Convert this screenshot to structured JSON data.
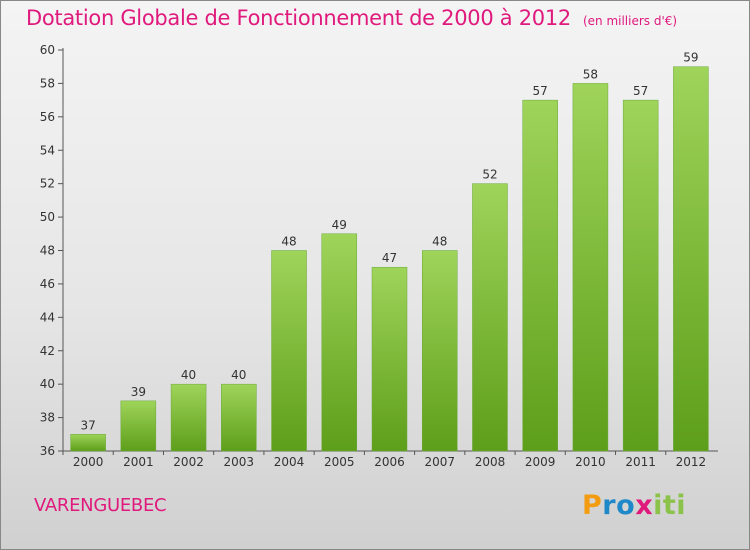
{
  "header": {
    "title": "Dotation Globale de Fonctionnement de 2000 à 2012",
    "subtitle": "(en milliers d'€)"
  },
  "commune": "VARENGUEBEC",
  "logo": {
    "text": "Proxiti",
    "letters": [
      "P",
      "r",
      "o",
      "x",
      "i",
      "ti"
    ]
  },
  "colors": {
    "title": "#e0197d",
    "bar_top": "#9fd45a",
    "bar_bottom": "#5d9e1a"
  },
  "chart_data": {
    "type": "bar",
    "title": "Dotation Globale de Fonctionnement de 2000 à 2012",
    "subtitle": "(en milliers d'€)",
    "xlabel": "",
    "ylabel": "",
    "categories": [
      "2000",
      "2001",
      "2002",
      "2003",
      "2004",
      "2005",
      "2006",
      "2007",
      "2008",
      "2009",
      "2010",
      "2011",
      "2012"
    ],
    "values": [
      37,
      39,
      40,
      40,
      48,
      49,
      47,
      48,
      52,
      57,
      58,
      57,
      59
    ],
    "ylim": [
      36,
      60
    ],
    "yticks": [
      36,
      38,
      40,
      42,
      44,
      46,
      48,
      50,
      52,
      54,
      56,
      58,
      60
    ],
    "grid": false,
    "legend": "none"
  }
}
